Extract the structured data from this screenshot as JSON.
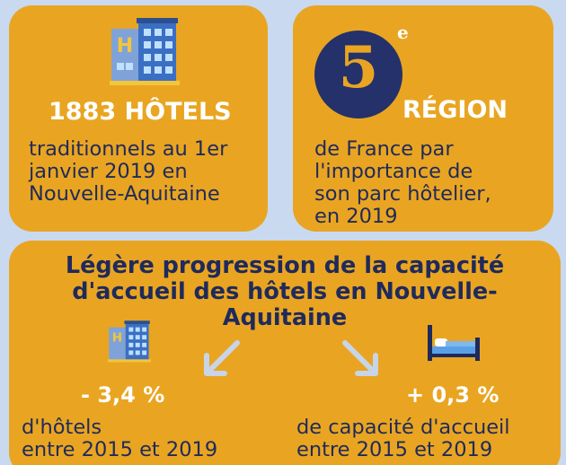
{
  "hotels_card": {
    "icon": "hotel-building-icon",
    "title": "1883 HÔTELS",
    "description_lines": [
      "traditionnels au 1er",
      "janvier 2019 en",
      "Nouvelle-Aquitaine"
    ]
  },
  "region_card": {
    "rank_number": "5",
    "rank_suffix": "e",
    "title": "RÉGION",
    "description_lines": [
      "de France par",
      "l'importance de",
      "son parc hôtelier,",
      "en 2019"
    ]
  },
  "progress_card": {
    "title_lines": [
      "Légère progression de la capacité",
      "d'accueil des hôtels en Nouvelle-",
      "Aquitaine"
    ],
    "left_stat": {
      "icon": "hotel-building-icon",
      "value": "- 3,4 %",
      "description_lines": [
        "d'hôtels",
        "entre 2015 et 2019"
      ]
    },
    "right_stat": {
      "icon": "bed-icon",
      "value": "+ 0,3 %",
      "description_lines": [
        "de capacité d'accueil",
        "entre 2015 et 2019"
      ]
    }
  },
  "colors": {
    "background": "#c9d9f0",
    "card": "#e9a521",
    "navy": "#1f2a5c",
    "white": "#ffffff",
    "arrow": "#c8d4e8"
  }
}
